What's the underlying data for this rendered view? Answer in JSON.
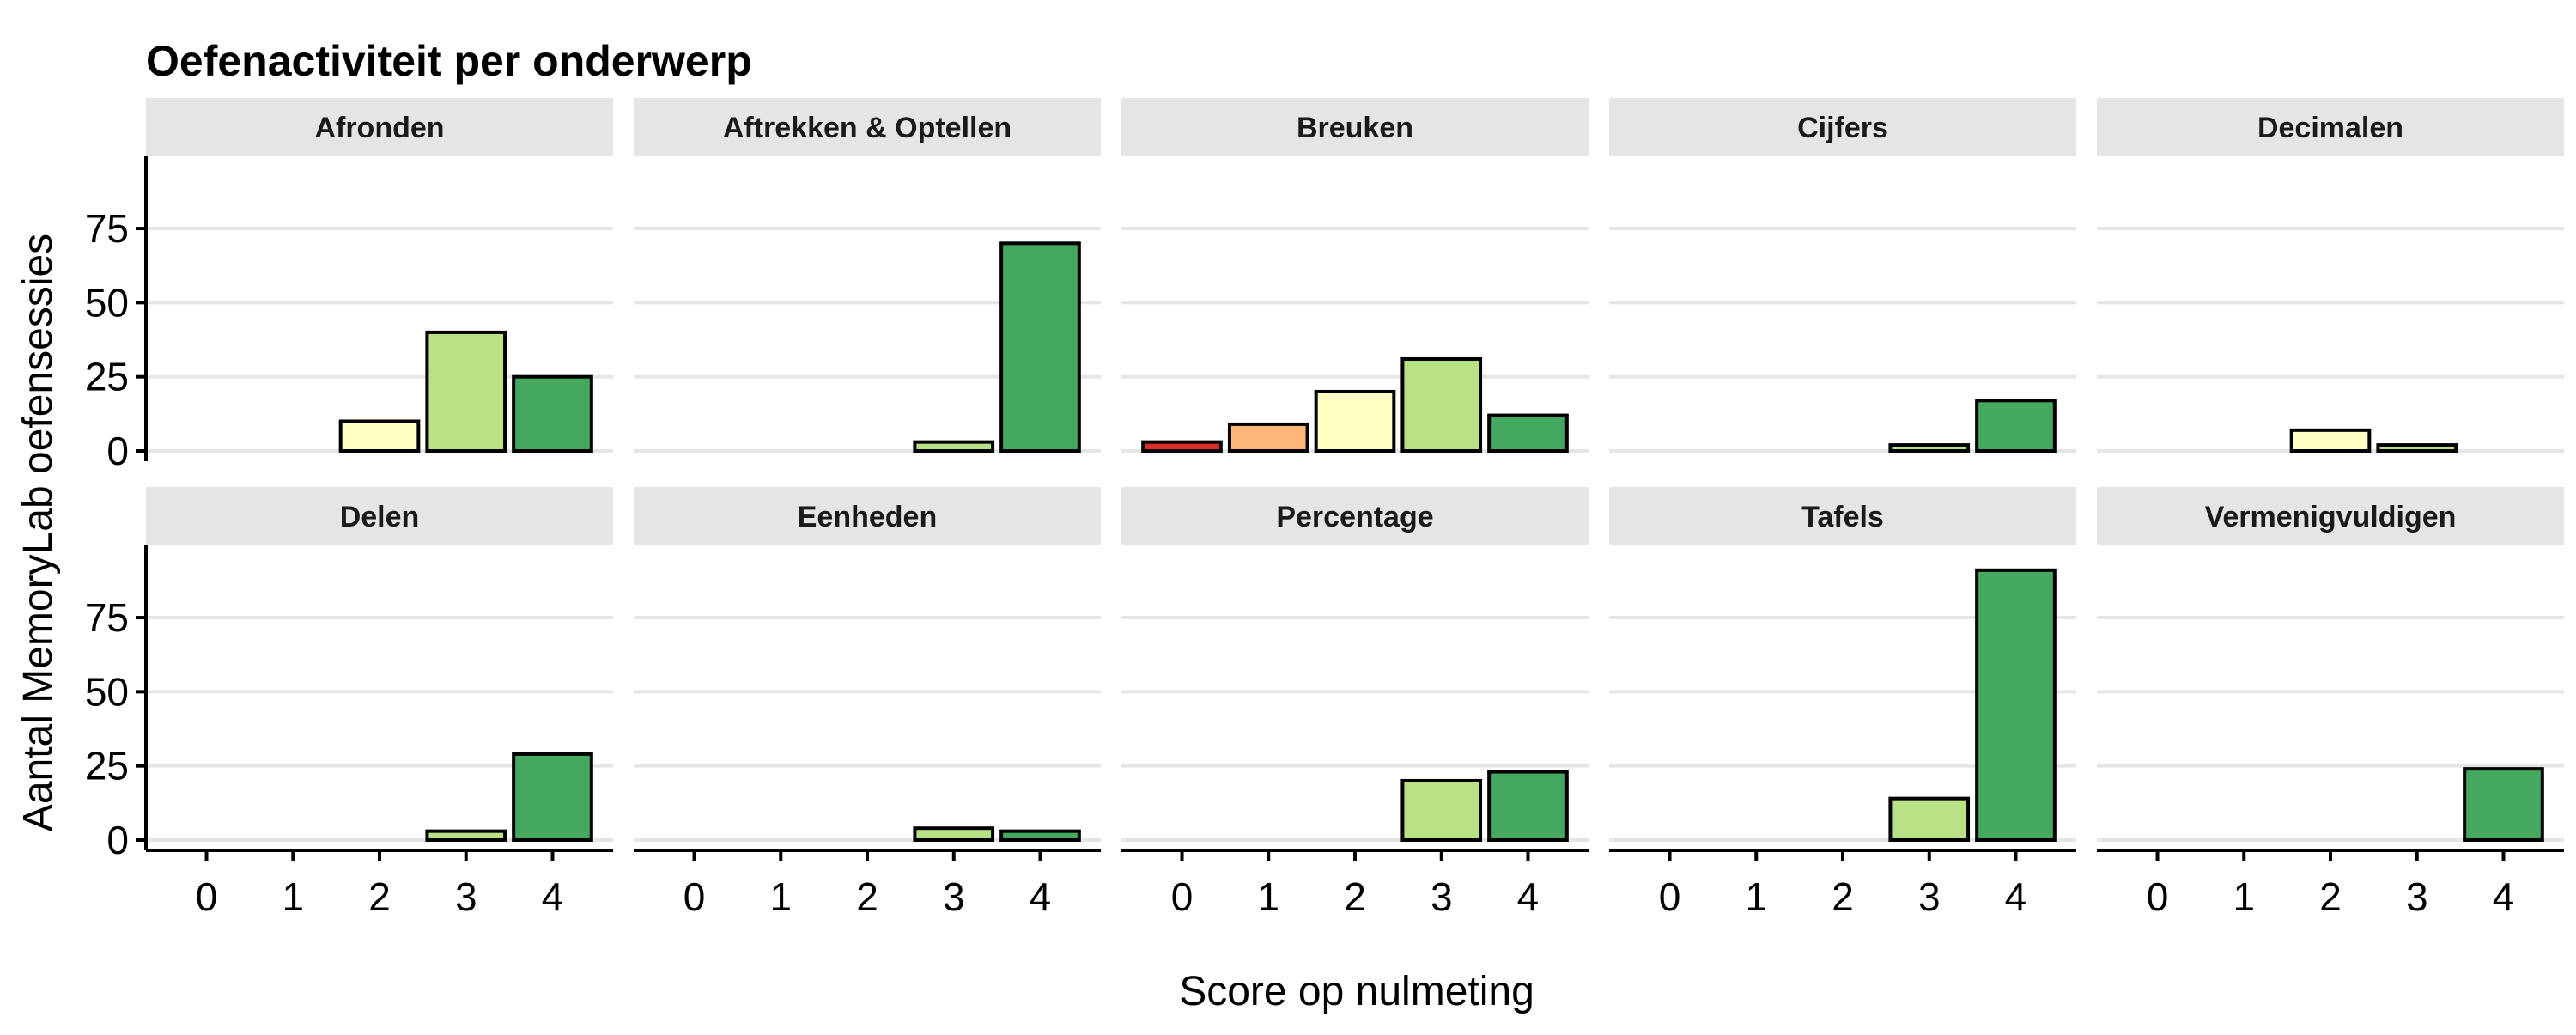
{
  "chart_data": {
    "type": "bar",
    "title": "Oefenactiviteit per onderwerp",
    "xlabel": "Score op nulmeting",
    "ylabel": "Aantal MemoryLab oefensessies",
    "categories": [
      "0",
      "1",
      "2",
      "3",
      "4"
    ],
    "ylim": [
      0,
      95
    ],
    "yticks": [
      0,
      25,
      50,
      75
    ],
    "grid": "horizontal",
    "facet_layout": "2 rows x 5 columns",
    "colors": {
      "0": "#D7302A",
      "1": "#FDB677",
      "2": "#FFFFC4",
      "3": "#B9E186",
      "4": "#45A85F",
      "strip_bg": "#E5E5E5",
      "grid": "#E5E5E5",
      "bar_border": "#000000"
    },
    "panels": [
      {
        "name": "Afronden",
        "values": [
          0,
          0,
          10,
          40,
          25
        ]
      },
      {
        "name": "Aftrekken & Optellen",
        "values": [
          0,
          0,
          0,
          3,
          70
        ]
      },
      {
        "name": "Breuken",
        "values": [
          3,
          9,
          20,
          31,
          12
        ]
      },
      {
        "name": "Cijfers",
        "values": [
          0,
          0,
          0,
          2,
          17
        ]
      },
      {
        "name": "Decimalen",
        "values": [
          0,
          0,
          7,
          2,
          0
        ]
      },
      {
        "name": "Delen",
        "values": [
          0,
          0,
          0,
          3,
          29
        ]
      },
      {
        "name": "Eenheden",
        "values": [
          0,
          0,
          0,
          4,
          3
        ]
      },
      {
        "name": "Percentage",
        "values": [
          0,
          0,
          0,
          20,
          23
        ]
      },
      {
        "name": "Tafels",
        "values": [
          0,
          0,
          0,
          14,
          91
        ]
      },
      {
        "name": "Vermenigvuldigen",
        "values": [
          0,
          0,
          0,
          0,
          24
        ]
      }
    ]
  }
}
